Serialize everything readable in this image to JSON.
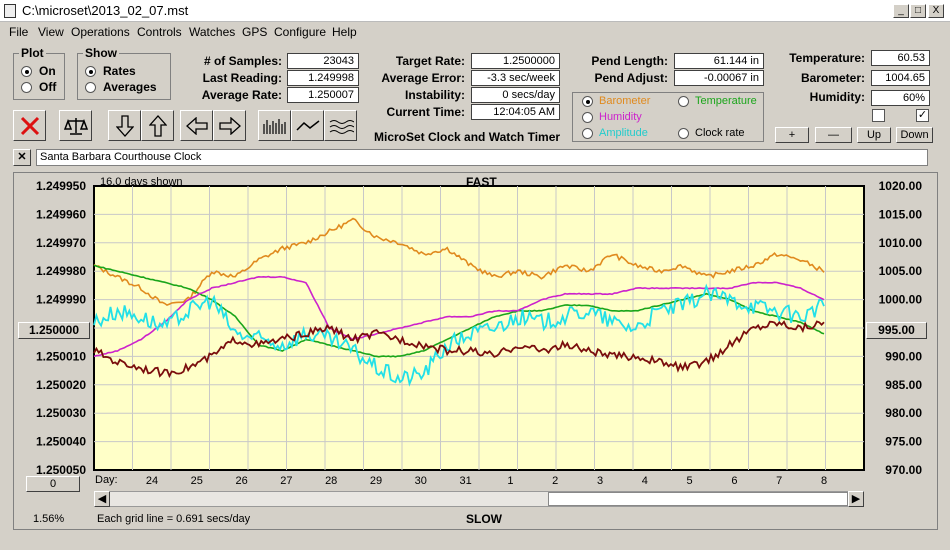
{
  "window": {
    "title": "C:\\microset\\2013_02_07.mst",
    "buttons": [
      "_",
      "□",
      "X"
    ]
  },
  "menu": [
    "File",
    "View",
    "Operations",
    "Controls",
    "Watches",
    "GPS",
    "Configure",
    "Help"
  ],
  "plot_group": {
    "title": "Plot",
    "options": [
      "On",
      "Off"
    ],
    "selected": "On"
  },
  "show_group": {
    "title": "Show",
    "options": [
      "Rates",
      "Averages"
    ],
    "selected": "Rates"
  },
  "stats": {
    "samples_label": "# of Samples:",
    "samples": "23043",
    "last_label": "Last Reading:",
    "last": "1.249998",
    "avg_label": "Average Rate:",
    "avg": "1.250007",
    "target_label": "Target Rate:",
    "target": "1.2500000",
    "err_label": "Average Error:",
    "err": "-3.3 sec/week",
    "instab_label": "Instability:",
    "instab": "0 secs/day",
    "time_label": "Current Time:",
    "time": "12:04:05 AM",
    "plen_label": "Pend Length:",
    "plen": "61.144 in",
    "padj_label": "Pend Adjust:",
    "padj": "-0.00067 in",
    "temp_label": "Temperature:",
    "temp": "60.53",
    "baro_label": "Barometer:",
    "baro": "1004.65",
    "hum_label": "Humidity:",
    "hum": "60%"
  },
  "app_caption": "MicroSet Clock and Watch Timer",
  "sensor_options": [
    {
      "label": "Barometer",
      "color": "#e08a1e",
      "selected": true
    },
    {
      "label": "Temperature",
      "color": "#1aa51a",
      "selected": false
    },
    {
      "label": "Humidity",
      "color": "#cc22cc",
      "selected": false
    },
    {
      "label": "Clock rate",
      "color": "#000000",
      "selected": false
    },
    {
      "label": "Amplitude",
      "color": "#22cccc",
      "selected": false
    }
  ],
  "scale_buttons": [
    "+",
    "—",
    "Up",
    "Down"
  ],
  "checkboxes": [
    false,
    true
  ],
  "clock_name": "Santa Barbara Courthouse Clock",
  "chart_data": {
    "type": "line",
    "top_label": "FAST",
    "bottom_label": "SLOW",
    "days_shown": "16.0 days shown",
    "grid_note": "Each grid line = 0.691 secs/day",
    "zoom": "1.56%",
    "bottom_box": "0",
    "left_box": "1.250000",
    "right_box": "995.00",
    "xlabel": "Day:",
    "x_ticks": [
      "24",
      "25",
      "26",
      "27",
      "28",
      "29",
      "30",
      "31",
      "1",
      "2",
      "3",
      "4",
      "5",
      "6",
      "7",
      "8"
    ],
    "y_left_ticks": [
      "1.249950",
      "1.249960",
      "1.249970",
      "1.249980",
      "1.249990",
      "1.250000",
      "1.250010",
      "1.250020",
      "1.250030",
      "1.250040",
      "1.250050"
    ],
    "y_right_ticks": [
      "1020.00",
      "1015.00",
      "1010.00",
      "1005.00",
      "1000.00",
      "995.00",
      "990.00",
      "985.00",
      "980.00",
      "975.00",
      "970.00"
    ],
    "y_right_range": [
      970,
      1020
    ],
    "series": [
      {
        "color": "#e08a1e",
        "values": [
          1006,
          1004,
          1002,
          999,
          1000,
          1005,
          1004,
          1007,
          1009,
          1010,
          1012,
          1014,
          1011,
          1010,
          1008,
          1009,
          1006,
          1004,
          1005,
          1004,
          1006,
          1005,
          1008,
          1006,
          1005,
          1006,
          1004,
          1005,
          1006,
          1008,
          1007,
          1005
        ]
      },
      {
        "color": "#1aa51a",
        "values": [
          1006,
          1005,
          1004,
          1003,
          1002,
          1000,
          997,
          992,
          991,
          993,
          992,
          991,
          990,
          990,
          991,
          993,
          995,
          997,
          998,
          998,
          999,
          999,
          998,
          998,
          999,
          1000,
          1001,
          1000,
          998,
          997,
          996,
          994
        ]
      },
      {
        "color": "#cc22cc",
        "values": [
          990,
          991,
          993,
          996,
          1000,
          1002,
          1003,
          1004,
          1004,
          1003,
          995,
          993,
          994,
          995,
          996,
          997,
          997,
          998,
          998,
          1000,
          1001,
          1001,
          1001,
          1002,
          1002,
          1002,
          1002,
          1002,
          1003,
          1003,
          1002,
          1000
        ]
      },
      {
        "color": "#22e0e8",
        "values": [
          996,
          998,
          997,
          995,
          998,
          1000,
          994,
          993,
          992,
          994,
          993,
          991,
          988,
          986,
          987,
          992,
          994,
          995,
          997,
          996,
          997,
          998,
          996,
          995,
          998,
          999,
          1001,
          1000,
          999,
          998,
          997,
          999
        ]
      },
      {
        "color": "#7a0d0d",
        "values": [
          991,
          989,
          988,
          987,
          988,
          990,
          993,
          992,
          993,
          994,
          995,
          993,
          994,
          993,
          992,
          991,
          991,
          990,
          992,
          991,
          992,
          991,
          990,
          990,
          989,
          988,
          989,
          992,
          995,
          996,
          995,
          996
        ]
      }
    ]
  }
}
